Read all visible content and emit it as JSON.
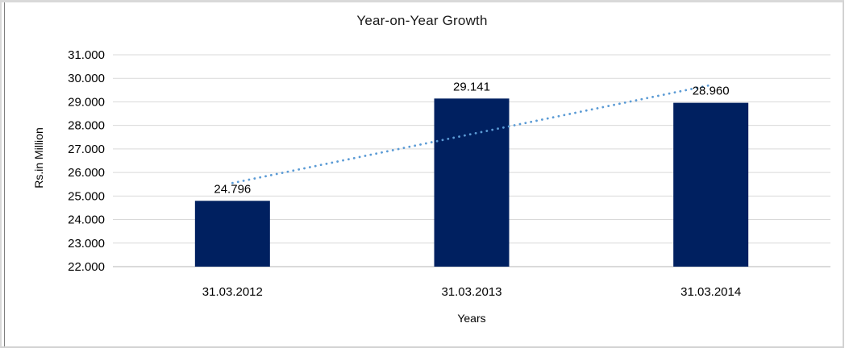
{
  "chart_data": {
    "type": "bar",
    "title": "Year-on-Year Growth",
    "xlabel": "Years",
    "ylabel": "Rs.in Million",
    "categories": [
      "31.03.2012",
      "31.03.2013",
      "31.03.2014"
    ],
    "values": [
      24796,
      29141,
      28960
    ],
    "value_labels": [
      "24.796",
      "29.141",
      "28.960"
    ],
    "ylim": [
      22000,
      31000
    ],
    "y_tick_values": [
      22000,
      23000,
      24000,
      25000,
      26000,
      27000,
      28000,
      29000,
      30000,
      31000
    ],
    "y_tick_labels": [
      "22.000",
      "23.000",
      "24.000",
      "25.000",
      "26.000",
      "27.000",
      "28.000",
      "29.000",
      "30.000",
      "31.000"
    ],
    "grid": true,
    "legend": "none",
    "bar_color": "#002060",
    "trendline": {
      "type": "linear",
      "style": "dotted",
      "color": "#5B9BD5"
    },
    "gridline_color": "#D9D9D9",
    "axis_line_color": "#C3C3C3",
    "text_color": "#000000"
  }
}
